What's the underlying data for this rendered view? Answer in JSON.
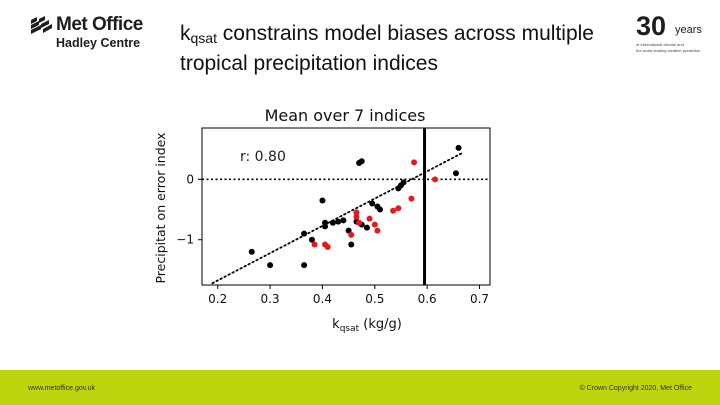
{
  "header": {
    "logo_name": "Met Office",
    "logo_sub": "Hadley Centre",
    "title_main": "k",
    "title_sub": "qsat",
    "title_rest": " constrains model biases across multiple tropical precipitation indices",
    "badge_number": "30",
    "badge_word": "years",
    "badge_line1": "of international climate and",
    "badge_line2": "the world-leading weather prediction"
  },
  "footer": {
    "website": "www.metoffice.gov.uk",
    "copyright": "© Crown Copyright 2020, Met Office",
    "color": "#bcd50e"
  },
  "chart_data": {
    "type": "scatter",
    "title": "Mean over 7 indices",
    "xlabel_main": "k",
    "xlabel_sub": "qsat",
    "xlabel_unit": " (kg/g)",
    "ylabel": "Precipitat on error index",
    "annotation": "r: 0.80",
    "xlim": [
      0.17,
      0.72
    ],
    "ylim": [
      -1.75,
      0.85
    ],
    "x_ticks": [
      0.2,
      0.3,
      0.4,
      0.5,
      0.6,
      0.7
    ],
    "x_tick_labels": [
      "0.2",
      "0.3",
      "0.4",
      "0.5",
      "0.6",
      "0.7"
    ],
    "y_ticks": [
      0,
      -1
    ],
    "y_tick_labels": [
      "0",
      "−1"
    ],
    "reference_hline_y": 0,
    "reference_vline_x": 0.595,
    "fit_line": [
      [
        0.19,
        -1.72
      ],
      [
        0.67,
        0.45
      ]
    ],
    "colors": {
      "black_series": "#000000",
      "red_series": "#e41a1c",
      "axes": "#000000"
    },
    "series": [
      {
        "color_key": "black_series",
        "points": [
          [
            0.265,
            -1.2
          ],
          [
            0.3,
            -1.42
          ],
          [
            0.365,
            -1.42
          ],
          [
            0.365,
            -0.9
          ],
          [
            0.38,
            -1.0
          ],
          [
            0.4,
            -0.35
          ],
          [
            0.405,
            -0.72
          ],
          [
            0.405,
            -0.78
          ],
          [
            0.42,
            -0.72
          ],
          [
            0.43,
            -0.7
          ],
          [
            0.44,
            -0.68
          ],
          [
            0.45,
            -0.85
          ],
          [
            0.455,
            -1.08
          ],
          [
            0.465,
            -0.7
          ],
          [
            0.475,
            -0.75
          ],
          [
            0.47,
            0.27
          ],
          [
            0.475,
            0.3
          ],
          [
            0.485,
            -0.8
          ],
          [
            0.495,
            -0.4
          ],
          [
            0.505,
            -0.45
          ],
          [
            0.51,
            -0.5
          ],
          [
            0.545,
            -0.15
          ],
          [
            0.55,
            -0.1
          ],
          [
            0.555,
            -0.05
          ],
          [
            0.655,
            0.1
          ],
          [
            0.66,
            0.52
          ]
        ]
      },
      {
        "color_key": "red_series",
        "points": [
          [
            0.385,
            -1.08
          ],
          [
            0.405,
            -1.08
          ],
          [
            0.41,
            -1.12
          ],
          [
            0.455,
            -0.92
          ],
          [
            0.465,
            -0.55
          ],
          [
            0.465,
            -0.62
          ],
          [
            0.47,
            -0.72
          ],
          [
            0.49,
            -0.65
          ],
          [
            0.5,
            -0.75
          ],
          [
            0.505,
            -0.85
          ],
          [
            0.535,
            -0.52
          ],
          [
            0.545,
            -0.48
          ],
          [
            0.57,
            -0.32
          ],
          [
            0.575,
            0.28
          ],
          [
            0.615,
            0.0
          ]
        ]
      }
    ]
  }
}
